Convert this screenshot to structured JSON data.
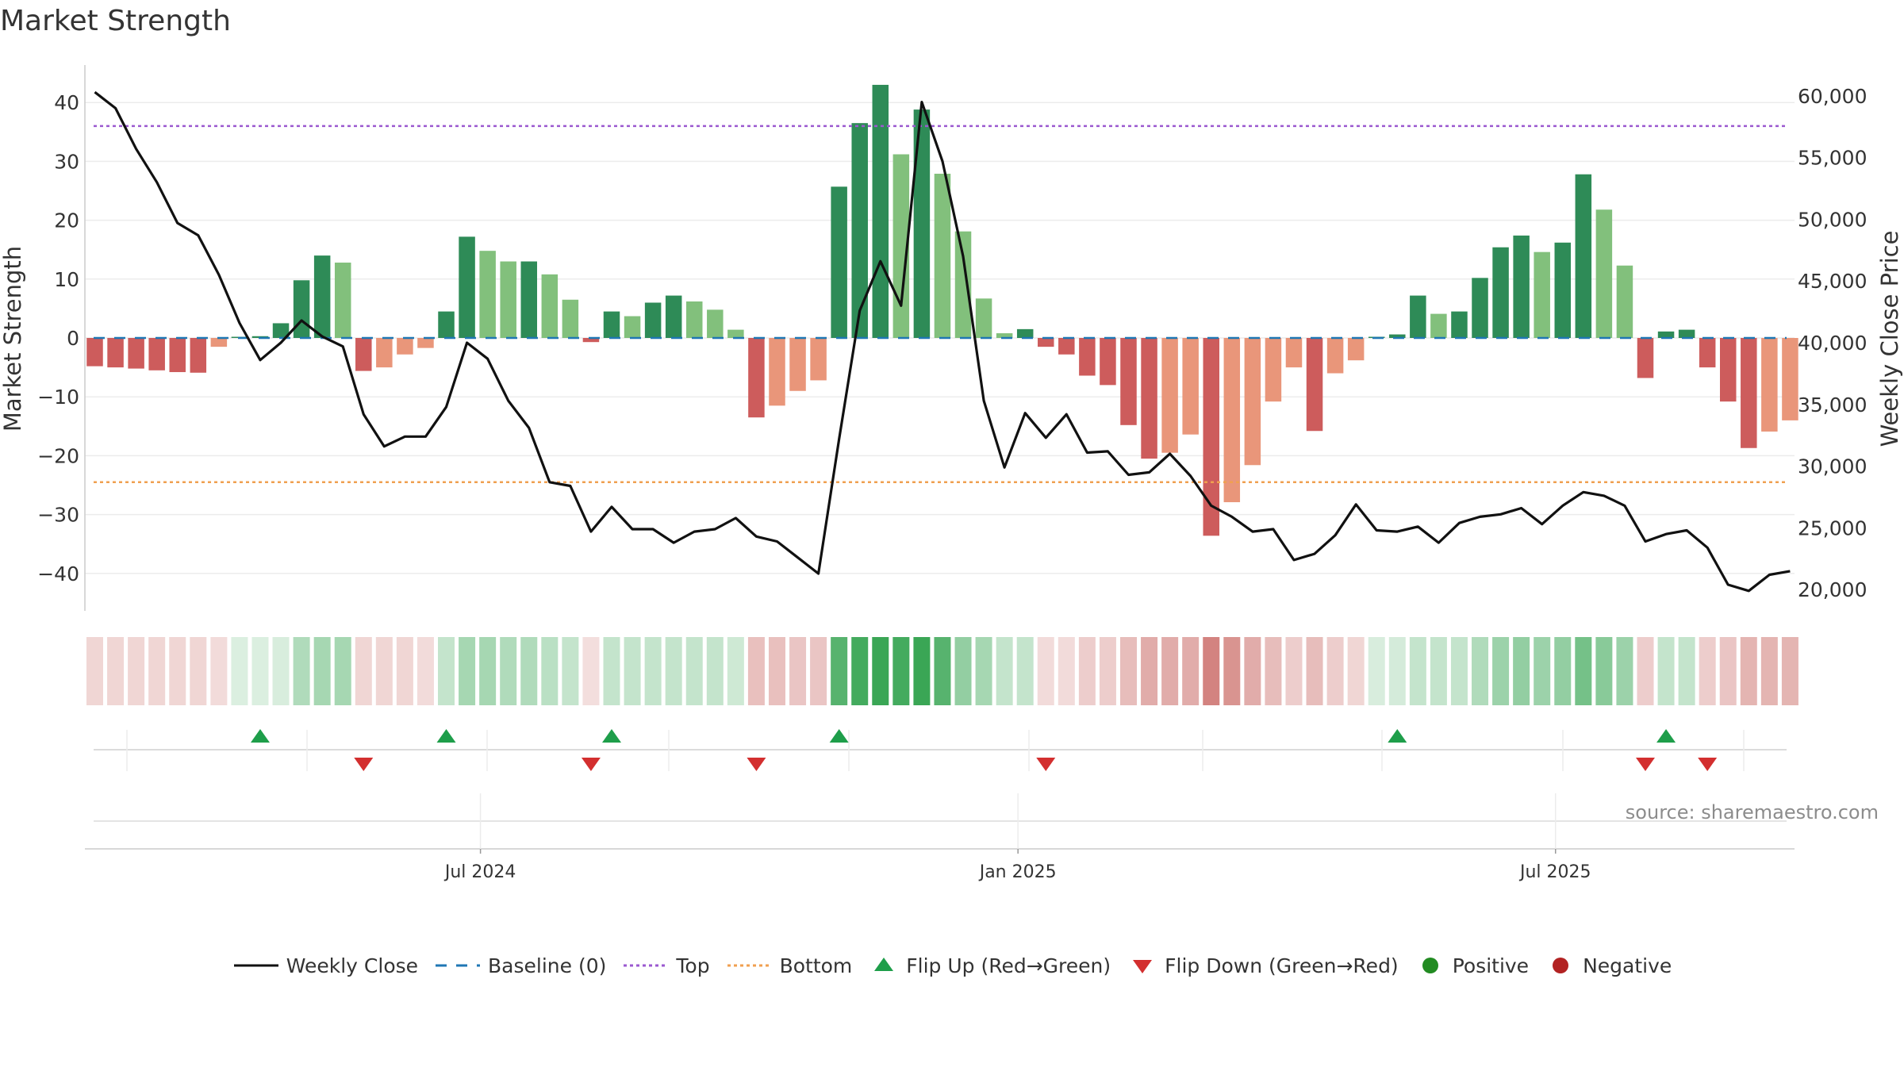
{
  "title": "Market Strength",
  "source": "source: sharemaestro.com",
  "chart_data": {
    "type": "bar+line",
    "title": "Market Strength",
    "ylabel_left": "Market Strength",
    "ylabel_right": "Weekly Close Price",
    "ylim_left": [
      -47,
      47
    ],
    "ylim_right": [
      17500,
      61500
    ],
    "left_ticks": [
      "40",
      "30",
      "20",
      "10",
      "0",
      "−10",
      "−20",
      "−30",
      "−40"
    ],
    "left_tick_values": [
      40,
      30,
      20,
      10,
      0,
      -10,
      -20,
      -30,
      -40
    ],
    "right_ticks": [
      "60,000",
      "55,000",
      "50,000",
      "45,000",
      "40,000",
      "35,000",
      "30,000",
      "25,000",
      "20,000"
    ],
    "right_tick_values": [
      60000,
      55000,
      50000,
      45000,
      40000,
      35000,
      30000,
      25000,
      20000
    ],
    "top_line": 36,
    "bottom_line": -24.5,
    "x_tick_labels": [
      "Jul 2024",
      "Jan 2025",
      "Jul 2025"
    ],
    "x_tick_weeks": [
      19,
      45,
      71
    ],
    "strength": [
      -4.8,
      -5,
      -5.2,
      -5.5,
      -5.8,
      -5.9,
      -1.5,
      0.2,
      0.3,
      2.5,
      9.8,
      14,
      12.8,
      -5.6,
      -5,
      -2.8,
      -1.7,
      4.5,
      17.2,
      14.8,
      13,
      13,
      10.8,
      6.5,
      -0.7,
      4.5,
      3.7,
      6,
      7.2,
      6.2,
      4.8,
      1.4,
      -13.5,
      -11.5,
      -9,
      -7.2,
      25.7,
      36.5,
      43,
      31.2,
      38.8,
      27.9,
      18.1,
      6.7,
      0.8,
      1.5,
      -1.5,
      -2.8,
      -6.4,
      -8,
      -14.8,
      -20.5,
      -19.5,
      -16.4,
      -33.6,
      -27.9,
      -21.6,
      -10.8,
      -5,
      -15.8,
      -6,
      -3.8,
      0.2,
      0.6,
      7.2,
      4.1,
      4.5,
      10.2,
      15.4,
      17.4,
      14.6,
      16.2,
      27.8,
      21.8,
      12.3,
      -6.8,
      1.1,
      1.4,
      -5,
      -10.8,
      -18.7,
      -15.9,
      -14
    ],
    "weekly_close": [
      60300,
      59000,
      55700,
      53000,
      49700,
      48700,
      45500,
      41600,
      38600,
      40000,
      41800,
      40500,
      39700,
      34200,
      31600,
      32400,
      32400,
      34800,
      40000,
      38700,
      35300,
      33100,
      28700,
      28400,
      24700,
      26700,
      24900,
      24900,
      23800,
      24700,
      24900,
      25800,
      24300,
      23900,
      22600,
      21300,
      32200,
      42600,
      46600,
      43000,
      59500,
      54700,
      47000,
      35300,
      29900,
      34300,
      32300,
      34200,
      31100,
      31200,
      29300,
      29500,
      31000,
      29200,
      26800,
      25900,
      24700,
      24900,
      22400,
      22900,
      24400,
      26900,
      24800,
      24700,
      25100,
      23800,
      25400,
      25900,
      26100,
      26600,
      25300,
      26800,
      27900,
      27600,
      26800,
      23900,
      24500,
      24800,
      23400,
      20400,
      19900,
      21200,
      21500
    ],
    "heat_alpha": [
      0.25,
      0.25,
      0.25,
      0.25,
      0.25,
      0.25,
      0.22,
      0.18,
      0.18,
      0.2,
      0.4,
      0.45,
      0.45,
      0.25,
      0.25,
      0.25,
      0.22,
      0.3,
      0.45,
      0.45,
      0.4,
      0.4,
      0.35,
      0.3,
      0.2,
      0.3,
      0.3,
      0.3,
      0.3,
      0.3,
      0.3,
      0.25,
      0.38,
      0.38,
      0.35,
      0.35,
      0.85,
      0.95,
      1,
      0.95,
      1,
      0.85,
      0.55,
      0.45,
      0.3,
      0.3,
      0.22,
      0.22,
      0.3,
      0.3,
      0.4,
      0.5,
      0.5,
      0.5,
      0.75,
      0.65,
      0.5,
      0.4,
      0.3,
      0.4,
      0.3,
      0.25,
      0.2,
      0.22,
      0.3,
      0.3,
      0.3,
      0.4,
      0.5,
      0.55,
      0.5,
      0.55,
      0.7,
      0.6,
      0.5,
      0.3,
      0.3,
      0.3,
      0.3,
      0.35,
      0.45,
      0.45,
      0.45
    ],
    "flip_up_weeks": [
      8,
      17,
      25,
      36,
      63,
      76
    ],
    "flip_down_weeks": [
      13,
      24,
      32,
      46,
      75,
      78
    ]
  },
  "legend": {
    "weekly_close": "Weekly Close",
    "baseline": "Baseline (0)",
    "top": "Top",
    "bottom": "Bottom",
    "flip_up": "Flip Up (Red→Green)",
    "flip_down": "Flip Down (Green→Red)",
    "positive": "Positive",
    "negative": "Negative"
  },
  "colors": {
    "dark_green": "#2e8b57",
    "light_green": "#82c07c",
    "dark_red": "#cd5c5c",
    "light_red": "#e9967a",
    "heat_green": "#3aa655",
    "heat_red": "#c45a55",
    "top_line": "#9b59d0",
    "bottom_line": "#f0a050",
    "baseline": "#1f77b4",
    "flip_up": "#1e9e4a",
    "flip_down": "#d32f2f",
    "positive_dot": "#228b22",
    "negative_dot": "#b22222",
    "close_line": "#111111"
  }
}
